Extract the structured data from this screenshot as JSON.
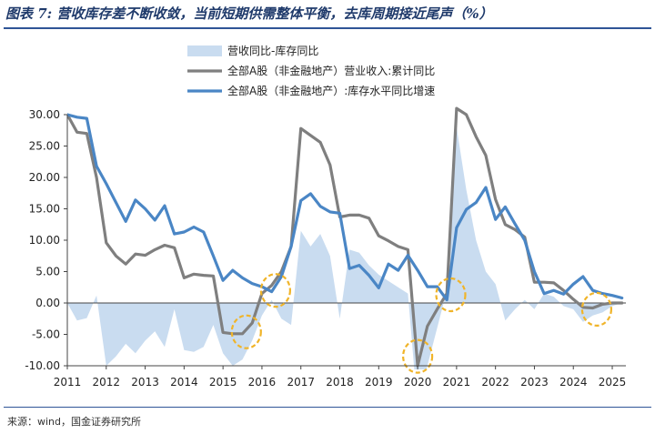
{
  "figure": {
    "title": "图表 7: 营收库存差不断收敛，当前短期供需整体平衡，去库周期接近尾声（%）",
    "source": "来源：wind，国金证券研究所"
  },
  "chart_data": {
    "type": "line",
    "ylim": [
      -10,
      30
    ],
    "yticks": [
      "30.00",
      "25.00",
      "20.00",
      "15.00",
      "10.00",
      "5.00",
      "0.00",
      "-5.00",
      "-10.00"
    ],
    "xticks": [
      "2011",
      "2012",
      "2013",
      "2014",
      "2015",
      "2016",
      "2017",
      "2018",
      "2019",
      "2020",
      "2021",
      "2022",
      "2023",
      "2024",
      "2025"
    ],
    "xlim": [
      2011.0,
      2025.35
    ],
    "grid": false,
    "legend": "top-center",
    "series": [
      {
        "name": "营收同比-库存同比",
        "kind": "area",
        "color": "#c9dcf0",
        "points": [
          [
            2011.0,
            0
          ],
          [
            2011.25,
            -2.8
          ],
          [
            2011.5,
            -2.4
          ],
          [
            2011.75,
            1.2
          ],
          [
            2012.0,
            -10.0
          ],
          [
            2012.25,
            -8.5
          ],
          [
            2012.5,
            -6.5
          ],
          [
            2012.75,
            -8.0
          ],
          [
            2013.0,
            -6.0
          ],
          [
            2013.25,
            -4.5
          ],
          [
            2013.5,
            -7.0
          ],
          [
            2013.75,
            -1.0
          ],
          [
            2014.0,
            -7.5
          ],
          [
            2014.25,
            -7.8
          ],
          [
            2014.5,
            -7.0
          ],
          [
            2014.75,
            -3.5
          ],
          [
            2015.0,
            -8.0
          ],
          [
            2015.25,
            -10.0
          ],
          [
            2015.5,
            -9.0
          ],
          [
            2015.75,
            -6.0
          ],
          [
            2016.0,
            -2.0
          ],
          [
            2016.25,
            0.5
          ],
          [
            2016.5,
            -2.5
          ],
          [
            2016.75,
            -3.5
          ],
          [
            2017.0,
            11.5
          ],
          [
            2017.25,
            9.0
          ],
          [
            2017.5,
            11.0
          ],
          [
            2017.75,
            7.5
          ],
          [
            2018.0,
            -2.5
          ],
          [
            2018.25,
            8.5
          ],
          [
            2018.5,
            8.0
          ],
          [
            2018.75,
            6.0
          ],
          [
            2019.0,
            4.5
          ],
          [
            2019.25,
            3.5
          ],
          [
            2019.5,
            2.5
          ],
          [
            2019.75,
            1.5
          ],
          [
            2020.0,
            -17.0
          ],
          [
            2020.25,
            -10.0
          ],
          [
            2020.5,
            -4.0
          ],
          [
            2020.75,
            2.0
          ],
          [
            2021.0,
            28.0
          ],
          [
            2021.25,
            18.0
          ],
          [
            2021.5,
            10.0
          ],
          [
            2021.75,
            5.0
          ],
          [
            2022.0,
            3.0
          ],
          [
            2022.25,
            -2.8
          ],
          [
            2022.5,
            -1.0
          ],
          [
            2022.75,
            0.5
          ],
          [
            2023.0,
            -1.0
          ],
          [
            2023.25,
            1.5
          ],
          [
            2023.5,
            1.0
          ],
          [
            2023.75,
            -0.5
          ],
          [
            2024.0,
            -1.0
          ],
          [
            2024.25,
            -3.0
          ],
          [
            2024.5,
            -2.0
          ],
          [
            2024.75,
            -1.5
          ],
          [
            2025.0,
            -0.5
          ],
          [
            2025.25,
            0
          ]
        ]
      },
      {
        "name": "全部A股（非金融地产）营业收入:累计同比",
        "kind": "line",
        "color": "#7f7f7f",
        "points": [
          [
            2011.0,
            30.0
          ],
          [
            2011.25,
            27.2
          ],
          [
            2011.5,
            27.0
          ],
          [
            2011.75,
            20.0
          ],
          [
            2012.0,
            9.6
          ],
          [
            2012.25,
            7.5
          ],
          [
            2012.5,
            6.2
          ],
          [
            2012.75,
            7.8
          ],
          [
            2013.0,
            7.6
          ],
          [
            2013.25,
            8.5
          ],
          [
            2013.5,
            9.2
          ],
          [
            2013.75,
            8.8
          ],
          [
            2014.0,
            4.0
          ],
          [
            2014.25,
            4.6
          ],
          [
            2014.5,
            4.4
          ],
          [
            2014.75,
            4.3
          ],
          [
            2015.0,
            -4.7
          ],
          [
            2015.25,
            -4.9
          ],
          [
            2015.5,
            -4.9
          ],
          [
            2015.75,
            -3.2
          ],
          [
            2016.0,
            1.5
          ],
          [
            2016.25,
            2.8
          ],
          [
            2016.5,
            5.0
          ],
          [
            2016.75,
            9.0
          ],
          [
            2017.0,
            27.8
          ],
          [
            2017.25,
            26.7
          ],
          [
            2017.5,
            25.6
          ],
          [
            2017.75,
            22.0
          ],
          [
            2018.0,
            13.7
          ],
          [
            2018.25,
            14.0
          ],
          [
            2018.5,
            14.0
          ],
          [
            2018.75,
            13.5
          ],
          [
            2019.0,
            10.7
          ],
          [
            2019.25,
            9.9
          ],
          [
            2019.5,
            9.0
          ],
          [
            2019.75,
            8.5
          ],
          [
            2020.0,
            -10.0
          ],
          [
            2020.25,
            -3.7
          ],
          [
            2020.5,
            -1.0
          ],
          [
            2020.75,
            1.5
          ],
          [
            2021.0,
            31.0
          ],
          [
            2021.25,
            30.0
          ],
          [
            2021.5,
            26.5
          ],
          [
            2021.75,
            23.5
          ],
          [
            2022.0,
            16.5
          ],
          [
            2022.25,
            12.5
          ],
          [
            2022.5,
            11.7
          ],
          [
            2022.75,
            10.5
          ],
          [
            2023.0,
            3.3
          ],
          [
            2023.25,
            3.3
          ],
          [
            2023.5,
            3.2
          ],
          [
            2023.75,
            2.0
          ],
          [
            2024.0,
            0.6
          ],
          [
            2024.25,
            -0.7
          ],
          [
            2024.5,
            -0.8
          ],
          [
            2024.75,
            -0.2
          ],
          [
            2025.0,
            0.0
          ],
          [
            2025.25,
            0.0
          ]
        ]
      },
      {
        "name": "全部A股（非金融地产）:库存水平同比增速",
        "kind": "line",
        "color": "#4a86c5",
        "points": [
          [
            2011.0,
            30.0
          ],
          [
            2011.25,
            29.6
          ],
          [
            2011.5,
            29.4
          ],
          [
            2011.75,
            21.8
          ],
          [
            2012.0,
            19.0
          ],
          [
            2012.25,
            16.0
          ],
          [
            2012.5,
            13.0
          ],
          [
            2012.75,
            16.4
          ],
          [
            2013.0,
            15.0
          ],
          [
            2013.25,
            13.2
          ],
          [
            2013.5,
            15.5
          ],
          [
            2013.75,
            11.0
          ],
          [
            2014.0,
            11.3
          ],
          [
            2014.25,
            12.1
          ],
          [
            2014.5,
            11.3
          ],
          [
            2014.75,
            7.5
          ],
          [
            2015.0,
            3.6
          ],
          [
            2015.25,
            5.2
          ],
          [
            2015.5,
            4.0
          ],
          [
            2015.75,
            3.1
          ],
          [
            2016.0,
            2.6
          ],
          [
            2016.25,
            1.8
          ],
          [
            2016.5,
            4.2
          ],
          [
            2016.75,
            9.0
          ],
          [
            2017.0,
            16.3
          ],
          [
            2017.25,
            17.4
          ],
          [
            2017.5,
            15.4
          ],
          [
            2017.75,
            14.5
          ],
          [
            2018.0,
            14.3
          ],
          [
            2018.25,
            5.5
          ],
          [
            2018.5,
            6.0
          ],
          [
            2018.75,
            4.4
          ],
          [
            2019.0,
            2.4
          ],
          [
            2019.25,
            6.2
          ],
          [
            2019.5,
            5.2
          ],
          [
            2019.75,
            7.6
          ],
          [
            2020.0,
            5.2
          ],
          [
            2020.25,
            2.6
          ],
          [
            2020.5,
            2.6
          ],
          [
            2020.75,
            0.5
          ],
          [
            2021.0,
            12.0
          ],
          [
            2021.25,
            14.9
          ],
          [
            2021.5,
            16.0
          ],
          [
            2021.75,
            18.4
          ],
          [
            2022.0,
            13.3
          ],
          [
            2022.25,
            15.3
          ],
          [
            2022.5,
            12.6
          ],
          [
            2022.75,
            10.0
          ],
          [
            2023.0,
            5.0
          ],
          [
            2023.25,
            1.5
          ],
          [
            2023.5,
            2.0
          ],
          [
            2023.75,
            1.4
          ],
          [
            2024.0,
            3.0
          ],
          [
            2024.25,
            4.2
          ],
          [
            2024.5,
            2.0
          ],
          [
            2024.75,
            1.5
          ],
          [
            2025.0,
            1.2
          ],
          [
            2025.25,
            0.8
          ]
        ]
      }
    ],
    "annotations": {
      "type": "dashed-circle",
      "color": "#f0b429",
      "points": [
        [
          2015.6,
          -4.6
        ],
        [
          2016.35,
          2.0
        ],
        [
          2020.0,
          -8.5
        ],
        [
          2020.85,
          1.3
        ],
        [
          2024.6,
          -1.0
        ]
      ]
    }
  }
}
